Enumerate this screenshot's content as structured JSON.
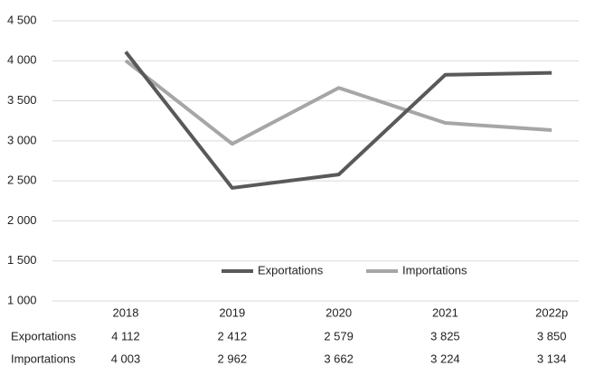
{
  "chart_data": {
    "type": "line",
    "categories": [
      "2018",
      "2019",
      "2020",
      "2021",
      "2022p"
    ],
    "series": [
      {
        "name": "Exportations",
        "color": "#595959",
        "values": [
          4112,
          2412,
          2579,
          3825,
          3850
        ],
        "value_labels": [
          "4 112",
          "2 412",
          "2 579",
          "3 825",
          "3 850"
        ]
      },
      {
        "name": "Importations",
        "color": "#a6a6a6",
        "values": [
          4003,
          2962,
          3662,
          3224,
          3134
        ],
        "value_labels": [
          "4 003",
          "2 962",
          "3 662",
          "3 224",
          "3 134"
        ]
      }
    ],
    "ylim": [
      1000,
      4500
    ],
    "yticks": [
      {
        "value": 1000,
        "label": "1 000"
      },
      {
        "value": 1500,
        "label": "1 500"
      },
      {
        "value": 2000,
        "label": "2 000"
      },
      {
        "value": 2500,
        "label": "2 500"
      },
      {
        "value": 3000,
        "label": "3 000"
      },
      {
        "value": 3500,
        "label": "3 500"
      },
      {
        "value": 4000,
        "label": "4 000"
      },
      {
        "value": 4500,
        "label": "4 500"
      }
    ],
    "grid": true,
    "legend": "bottom"
  }
}
